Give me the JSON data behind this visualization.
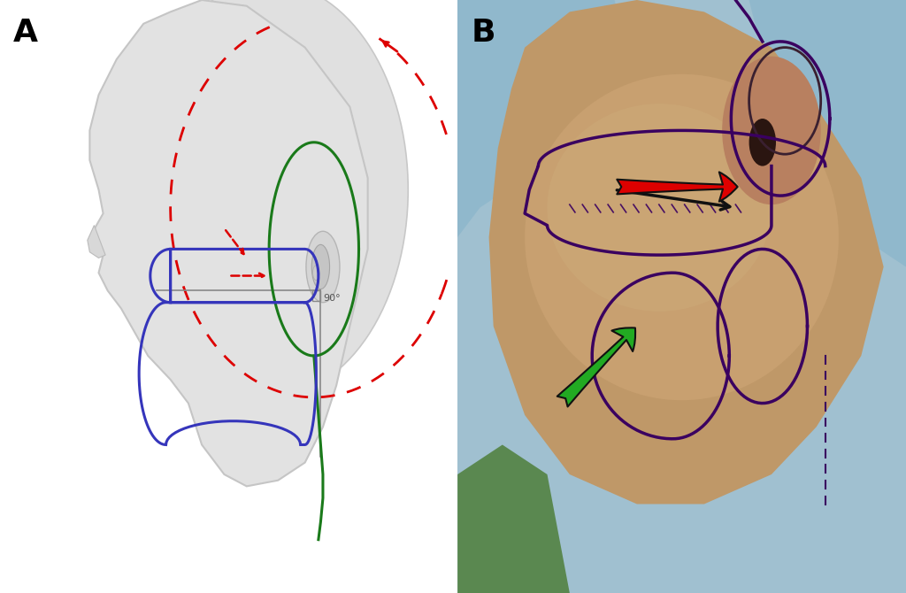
{
  "panel_a_label": "A",
  "panel_b_label": "B",
  "figure_bg": "#ffffff",
  "label_fontsize": 26,
  "label_fontweight": "bold",
  "label_color": "#000000",
  "green_color": "#1a7a1a",
  "blue_color": "#3535bb",
  "red_dashed_color": "#dd0000",
  "gray_line_color": "#888888",
  "red_arrow_color": "#dd0000",
  "green_arrow_color": "#22aa22",
  "annotation_90": "90°",
  "mark_color": "#3a0060",
  "panel_b_teal_top": "#a8ccd8",
  "panel_b_teal_bot": "#7aacbc",
  "panel_b_skin": "#c8a472",
  "panel_b_skin_light": "#d4b080"
}
